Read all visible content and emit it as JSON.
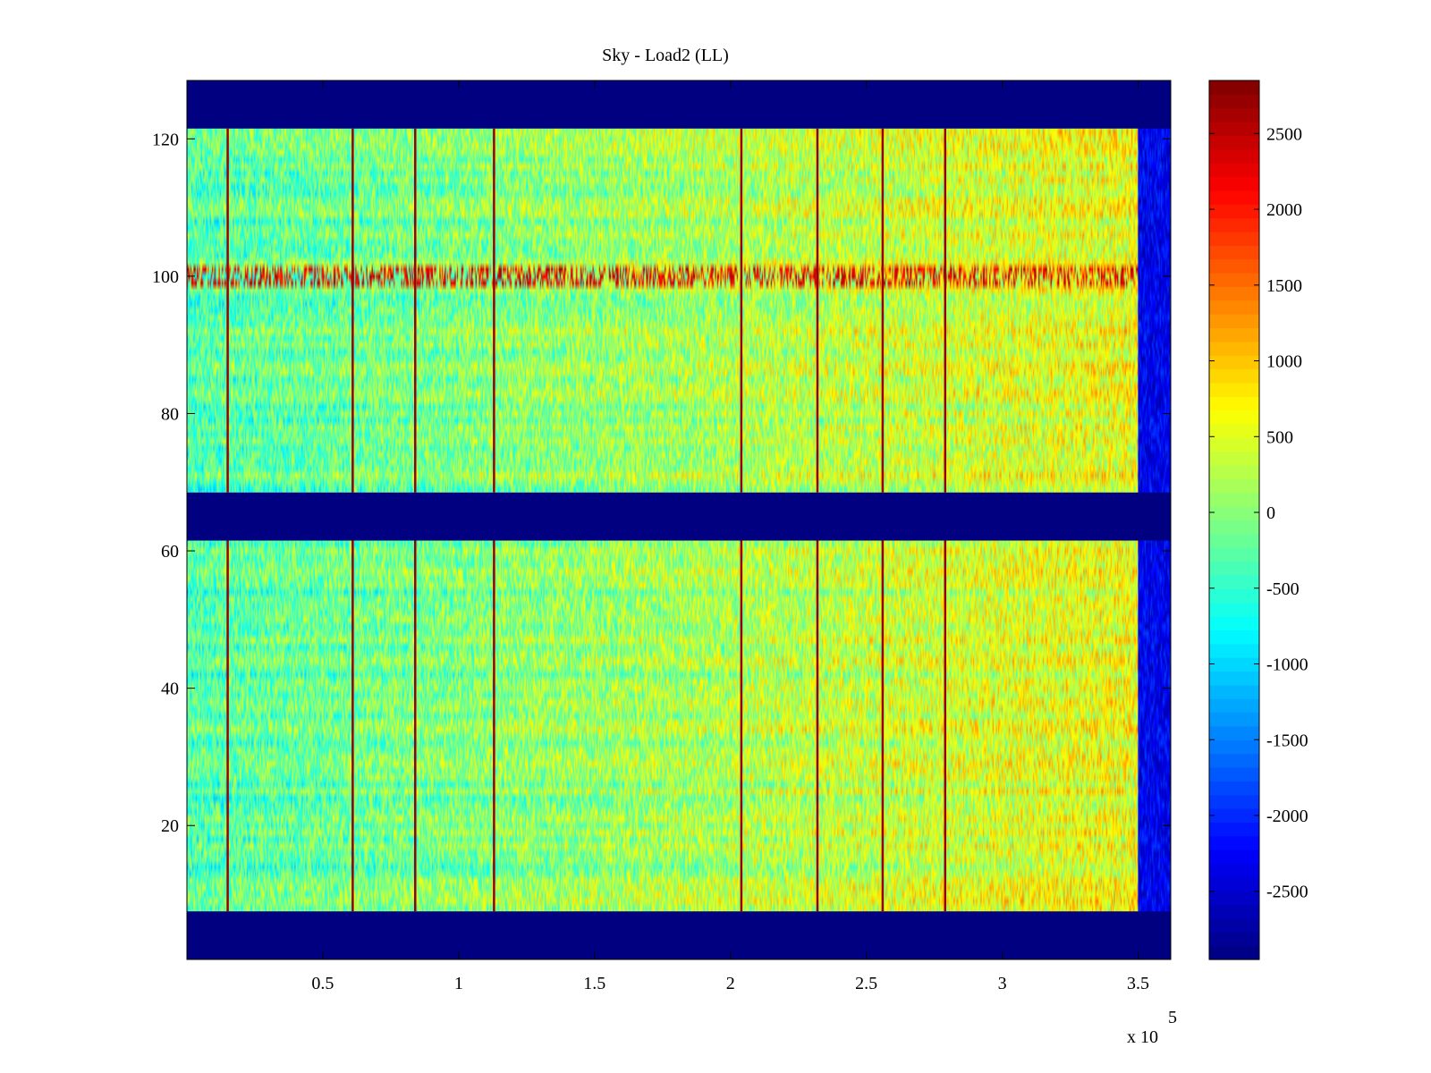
{
  "chart_data": {
    "type": "heatmap",
    "title": "Sky - Load2 (LL)",
    "xlabel": "",
    "ylabel": "",
    "x_exponent_label": "x 10",
    "x_exponent_power": "5",
    "xlim": [
      0,
      3.62
    ],
    "ylim": [
      0.5,
      128.5
    ],
    "x_ticks": [
      0.5,
      1,
      1.5,
      2,
      2.5,
      3,
      3.5
    ],
    "x_tick_labels": [
      "0.5",
      "1",
      "1.5",
      "2",
      "2.5",
      "3",
      "3.5"
    ],
    "y_ticks": [
      20,
      40,
      60,
      80,
      100,
      120
    ],
    "y_tick_labels": [
      "20",
      "40",
      "60",
      "80",
      "100",
      "120"
    ],
    "colorbar": {
      "colormap": "jet",
      "range": [
        -2950,
        2850
      ],
      "ticks": [
        2500,
        2000,
        1500,
        1000,
        500,
        0,
        -500,
        -1000,
        -1500,
        -2000,
        -2500
      ],
      "tick_labels": [
        "2500",
        "2000",
        "1500",
        "1000",
        "500",
        "0",
        "-500",
        "-1000",
        "-1500",
        "-2000",
        "-2500"
      ]
    },
    "masked_channel_ranges": [
      [
        0.5,
        7.5
      ],
      [
        61.5,
        68.5
      ],
      [
        121.5,
        128.5
      ]
    ],
    "active_channel_ranges": [
      [
        7.5,
        61.5
      ],
      [
        68.5,
        121.5
      ]
    ],
    "data_end_x": 3.5,
    "spike_columns_x": [
      0.15,
      0.61,
      0.84,
      1.13,
      2.04,
      2.32,
      2.56,
      2.79
    ],
    "hot_channel_y": 100,
    "value_range_typical": [
      -900,
      900
    ],
    "gradient_note_value_at_start": -300,
    "gradient_note_value_at_end": 600
  }
}
